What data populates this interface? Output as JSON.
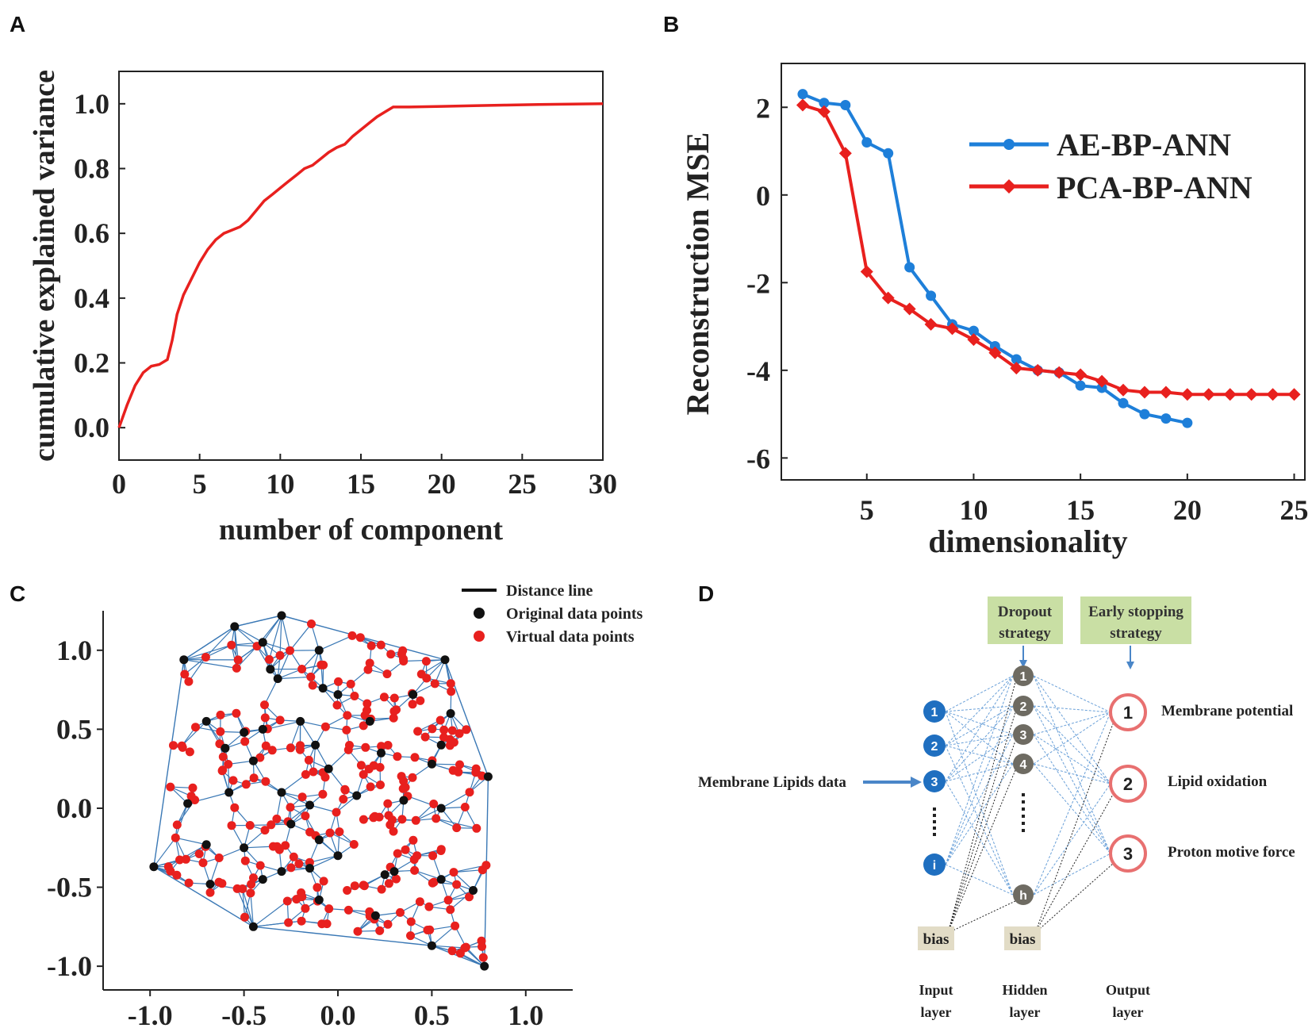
{
  "panels": {
    "a": "A",
    "b": "B",
    "c": "C",
    "d": "D"
  },
  "chart_data": [
    {
      "id": "A",
      "type": "line",
      "title": "",
      "xlabel": "number of component",
      "ylabel": "cumulative explained variance",
      "xlim": [
        0,
        30
      ],
      "ylim": [
        -0.1,
        1.1
      ],
      "xticks": [
        "0",
        "5",
        "10",
        "15",
        "20",
        "25",
        "30"
      ],
      "yticks": [
        "0.0",
        "0.2",
        "0.4",
        "0.6",
        "0.8",
        "1.0"
      ],
      "color": "#e8201e",
      "x": [
        0,
        0.5,
        1,
        1.5,
        2,
        2.5,
        3,
        3.3,
        3.6,
        4,
        4.5,
        5,
        5.5,
        6,
        6.5,
        7,
        7.5,
        8,
        8.5,
        9,
        9.5,
        10,
        10.5,
        11,
        11.5,
        12,
        12.5,
        13,
        13.5,
        14,
        14.5,
        15,
        15.5,
        16,
        16.5,
        17,
        18,
        20,
        22,
        24,
        26,
        28,
        30
      ],
      "y": [
        0.0,
        0.07,
        0.13,
        0.17,
        0.19,
        0.195,
        0.21,
        0.27,
        0.35,
        0.41,
        0.46,
        0.51,
        0.55,
        0.58,
        0.6,
        0.61,
        0.62,
        0.64,
        0.67,
        0.7,
        0.72,
        0.74,
        0.76,
        0.78,
        0.8,
        0.81,
        0.83,
        0.85,
        0.865,
        0.875,
        0.9,
        0.92,
        0.94,
        0.96,
        0.975,
        0.99,
        0.99,
        0.992,
        0.994,
        0.996,
        0.998,
        0.999,
        1.0
      ]
    },
    {
      "id": "B",
      "type": "line",
      "title": "",
      "xlabel": "dimensionality",
      "ylabel": "Reconstruction MSE",
      "xlim": [
        1,
        25.5
      ],
      "ylim": [
        -6.5,
        3
      ],
      "xticks": [
        "5",
        "10",
        "15",
        "20",
        "25"
      ],
      "yticks": [
        "2",
        "0",
        "-2",
        "-4",
        "-6"
      ],
      "legend_position": "top-right",
      "series": [
        {
          "name": "AE-BP-ANN",
          "color": "#1e7fd9",
          "marker": "circle",
          "x": [
            2,
            3,
            4,
            5,
            6,
            7,
            8,
            9,
            10,
            11,
            12,
            13,
            14,
            15,
            16,
            17,
            18,
            19,
            20
          ],
          "y": [
            2.3,
            2.1,
            2.05,
            1.2,
            0.95,
            -1.65,
            -2.3,
            -2.95,
            -3.1,
            -3.45,
            -3.75,
            -4.0,
            -4.05,
            -4.35,
            -4.4,
            -4.75,
            -5.0,
            -5.1,
            -5.2
          ]
        },
        {
          "name": "PCA-BP-ANN",
          "color": "#e8201e",
          "marker": "diamond",
          "x": [
            2,
            3,
            4,
            5,
            6,
            7,
            8,
            9,
            10,
            11,
            12,
            13,
            14,
            15,
            16,
            17,
            18,
            19,
            20,
            21,
            22,
            23,
            24,
            25
          ],
          "y": [
            2.05,
            1.9,
            0.95,
            -1.75,
            -2.35,
            -2.6,
            -2.95,
            -3.05,
            -3.3,
            -3.6,
            -3.95,
            -4.0,
            -4.05,
            -4.1,
            -4.25,
            -4.45,
            -4.5,
            -4.5,
            -4.55,
            -4.55,
            -4.55,
            -4.55,
            -4.55,
            -4.55
          ]
        }
      ]
    },
    {
      "id": "C",
      "type": "scatter",
      "title": "",
      "xlim": [
        -1.25,
        1.25
      ],
      "ylim": [
        -1.15,
        1.25
      ],
      "xticks": [
        "-1.0",
        "-0.5",
        "0.0",
        "0.5",
        "1.0"
      ],
      "yticks": [
        "1.0",
        "0.5",
        "0.0",
        "-0.5",
        "-1.0"
      ],
      "legend_position": "top-right",
      "legend": [
        "Distance line",
        "Original data points",
        "Virtual data points"
      ],
      "line_color": "#3a78b5",
      "original_color": "#111111",
      "virtual_color": "#e8201e",
      "original_points": [
        [
          -0.3,
          1.22
        ],
        [
          -0.55,
          1.15
        ],
        [
          -0.82,
          0.94
        ],
        [
          -0.1,
          1.0
        ],
        [
          0.57,
          0.94
        ],
        [
          -0.4,
          1.05
        ],
        [
          -0.36,
          0.88
        ],
        [
          -0.32,
          0.82
        ],
        [
          -0.08,
          0.76
        ],
        [
          0.0,
          0.72
        ],
        [
          0.4,
          0.72
        ],
        [
          0.6,
          0.6
        ],
        [
          -0.7,
          0.55
        ],
        [
          -0.2,
          0.55
        ],
        [
          -0.4,
          0.5
        ],
        [
          -0.5,
          0.48
        ],
        [
          0.17,
          0.55
        ],
        [
          -0.6,
          0.38
        ],
        [
          -0.12,
          0.4
        ],
        [
          0.55,
          0.4
        ],
        [
          -0.45,
          0.3
        ],
        [
          0.23,
          0.35
        ],
        [
          0.5,
          0.28
        ],
        [
          -0.05,
          0.25
        ],
        [
          -0.3,
          0.1
        ],
        [
          0.8,
          0.2
        ],
        [
          -0.58,
          0.1
        ],
        [
          0.1,
          0.08
        ],
        [
          -0.8,
          0.03
        ],
        [
          0.35,
          0.05
        ],
        [
          -0.15,
          0.02
        ],
        [
          0.55,
          0.0
        ],
        [
          -0.25,
          -0.1
        ],
        [
          -0.1,
          -0.2
        ],
        [
          -0.7,
          -0.23
        ],
        [
          0.0,
          -0.3
        ],
        [
          -0.5,
          -0.25
        ],
        [
          -0.3,
          -0.4
        ],
        [
          -0.15,
          -0.38
        ],
        [
          0.3,
          -0.4
        ],
        [
          -0.4,
          -0.45
        ],
        [
          0.25,
          -0.42
        ],
        [
          0.55,
          -0.45
        ],
        [
          -0.68,
          -0.48
        ],
        [
          0.72,
          -0.52
        ],
        [
          -0.98,
          -0.37
        ],
        [
          -0.1,
          -0.58
        ],
        [
          0.2,
          -0.68
        ],
        [
          -0.45,
          -0.75
        ],
        [
          0.5,
          -0.87
        ],
        [
          0.78,
          -1.0
        ]
      ],
      "virtual_point_count": 260
    }
  ],
  "diagram_d": {
    "dropout_box": [
      "Dropout",
      "strategy"
    ],
    "early_box": [
      "Early stopping",
      "strategy"
    ],
    "input_label": "Membrane Lipids data",
    "input_nodes": [
      "1",
      "2",
      "3",
      "i"
    ],
    "hidden_nodes": [
      "1",
      "2",
      "3",
      "4",
      "h"
    ],
    "output_nodes": [
      "1",
      "2",
      "3"
    ],
    "outputs": [
      "Membrane potential",
      "Lipid oxidation",
      "Proton motive force"
    ],
    "bias_input": "bias",
    "bias_hidden": "bias",
    "layer_input": [
      "Input",
      "layer"
    ],
    "layer_hidden": [
      "Hidden",
      "layer"
    ],
    "layer_output": [
      "Output",
      "layer"
    ],
    "colors": {
      "box": "#c9dfa4",
      "input_node": "#1f6fc0",
      "hidden_node": "#6e6b62",
      "output_ring": "#e87070",
      "connection": "#6aa0d8",
      "bias_box": "#e2dcc6"
    }
  }
}
